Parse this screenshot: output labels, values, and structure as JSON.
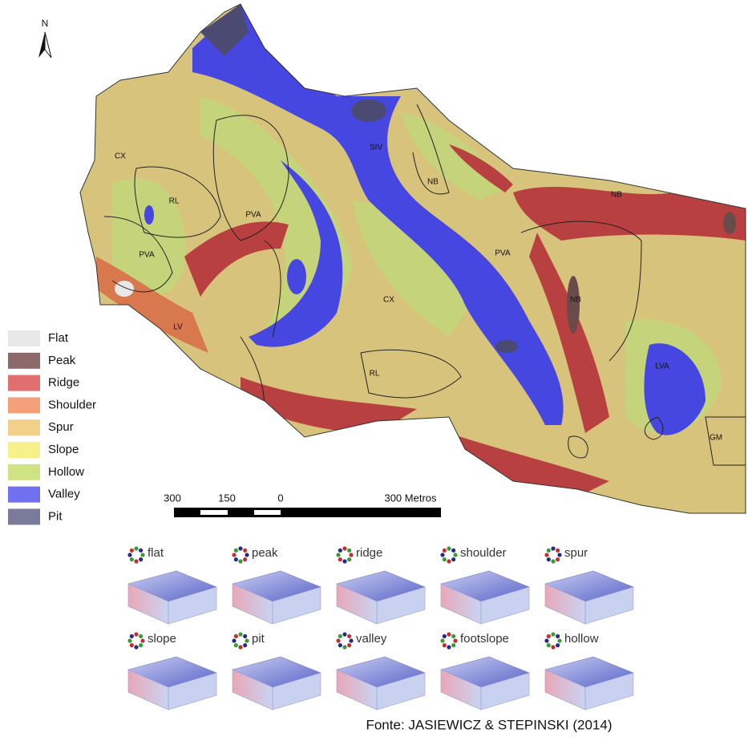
{
  "north": "N",
  "legend": [
    {
      "label": "Flat",
      "color": "#e8e8e8"
    },
    {
      "label": "Peak",
      "color": "#8c6a6a"
    },
    {
      "label": "Ridge",
      "color": "#e07070"
    },
    {
      "label": "Shoulder",
      "color": "#f4a07a"
    },
    {
      "label": "Spur",
      "color": "#f2cf8a"
    },
    {
      "label": "Slope",
      "color": "#f8f08a"
    },
    {
      "label": "Hollow",
      "color": "#cfe384"
    },
    {
      "label": "Valley",
      "color": "#7070f0"
    },
    {
      "label": "Pit",
      "color": "#7a7a9a"
    }
  ],
  "map_labels": [
    "CX",
    "RL",
    "PVA",
    "PVA",
    "LV",
    "SIV",
    "NB",
    "NB",
    "PVA",
    "CX",
    "NB",
    "RL",
    "LVA",
    "GM"
  ],
  "scale_bar": [
    "300",
    "150",
    "0",
    "300 Metros"
  ],
  "landform_diagrams": [
    "flat",
    "peak",
    "ridge",
    "shoulder",
    "spur",
    "slope",
    "pit",
    "valley",
    "footslope",
    "hollow"
  ],
  "source": "Fonte: JASIEWICZ & STEPINSKI (2014)"
}
